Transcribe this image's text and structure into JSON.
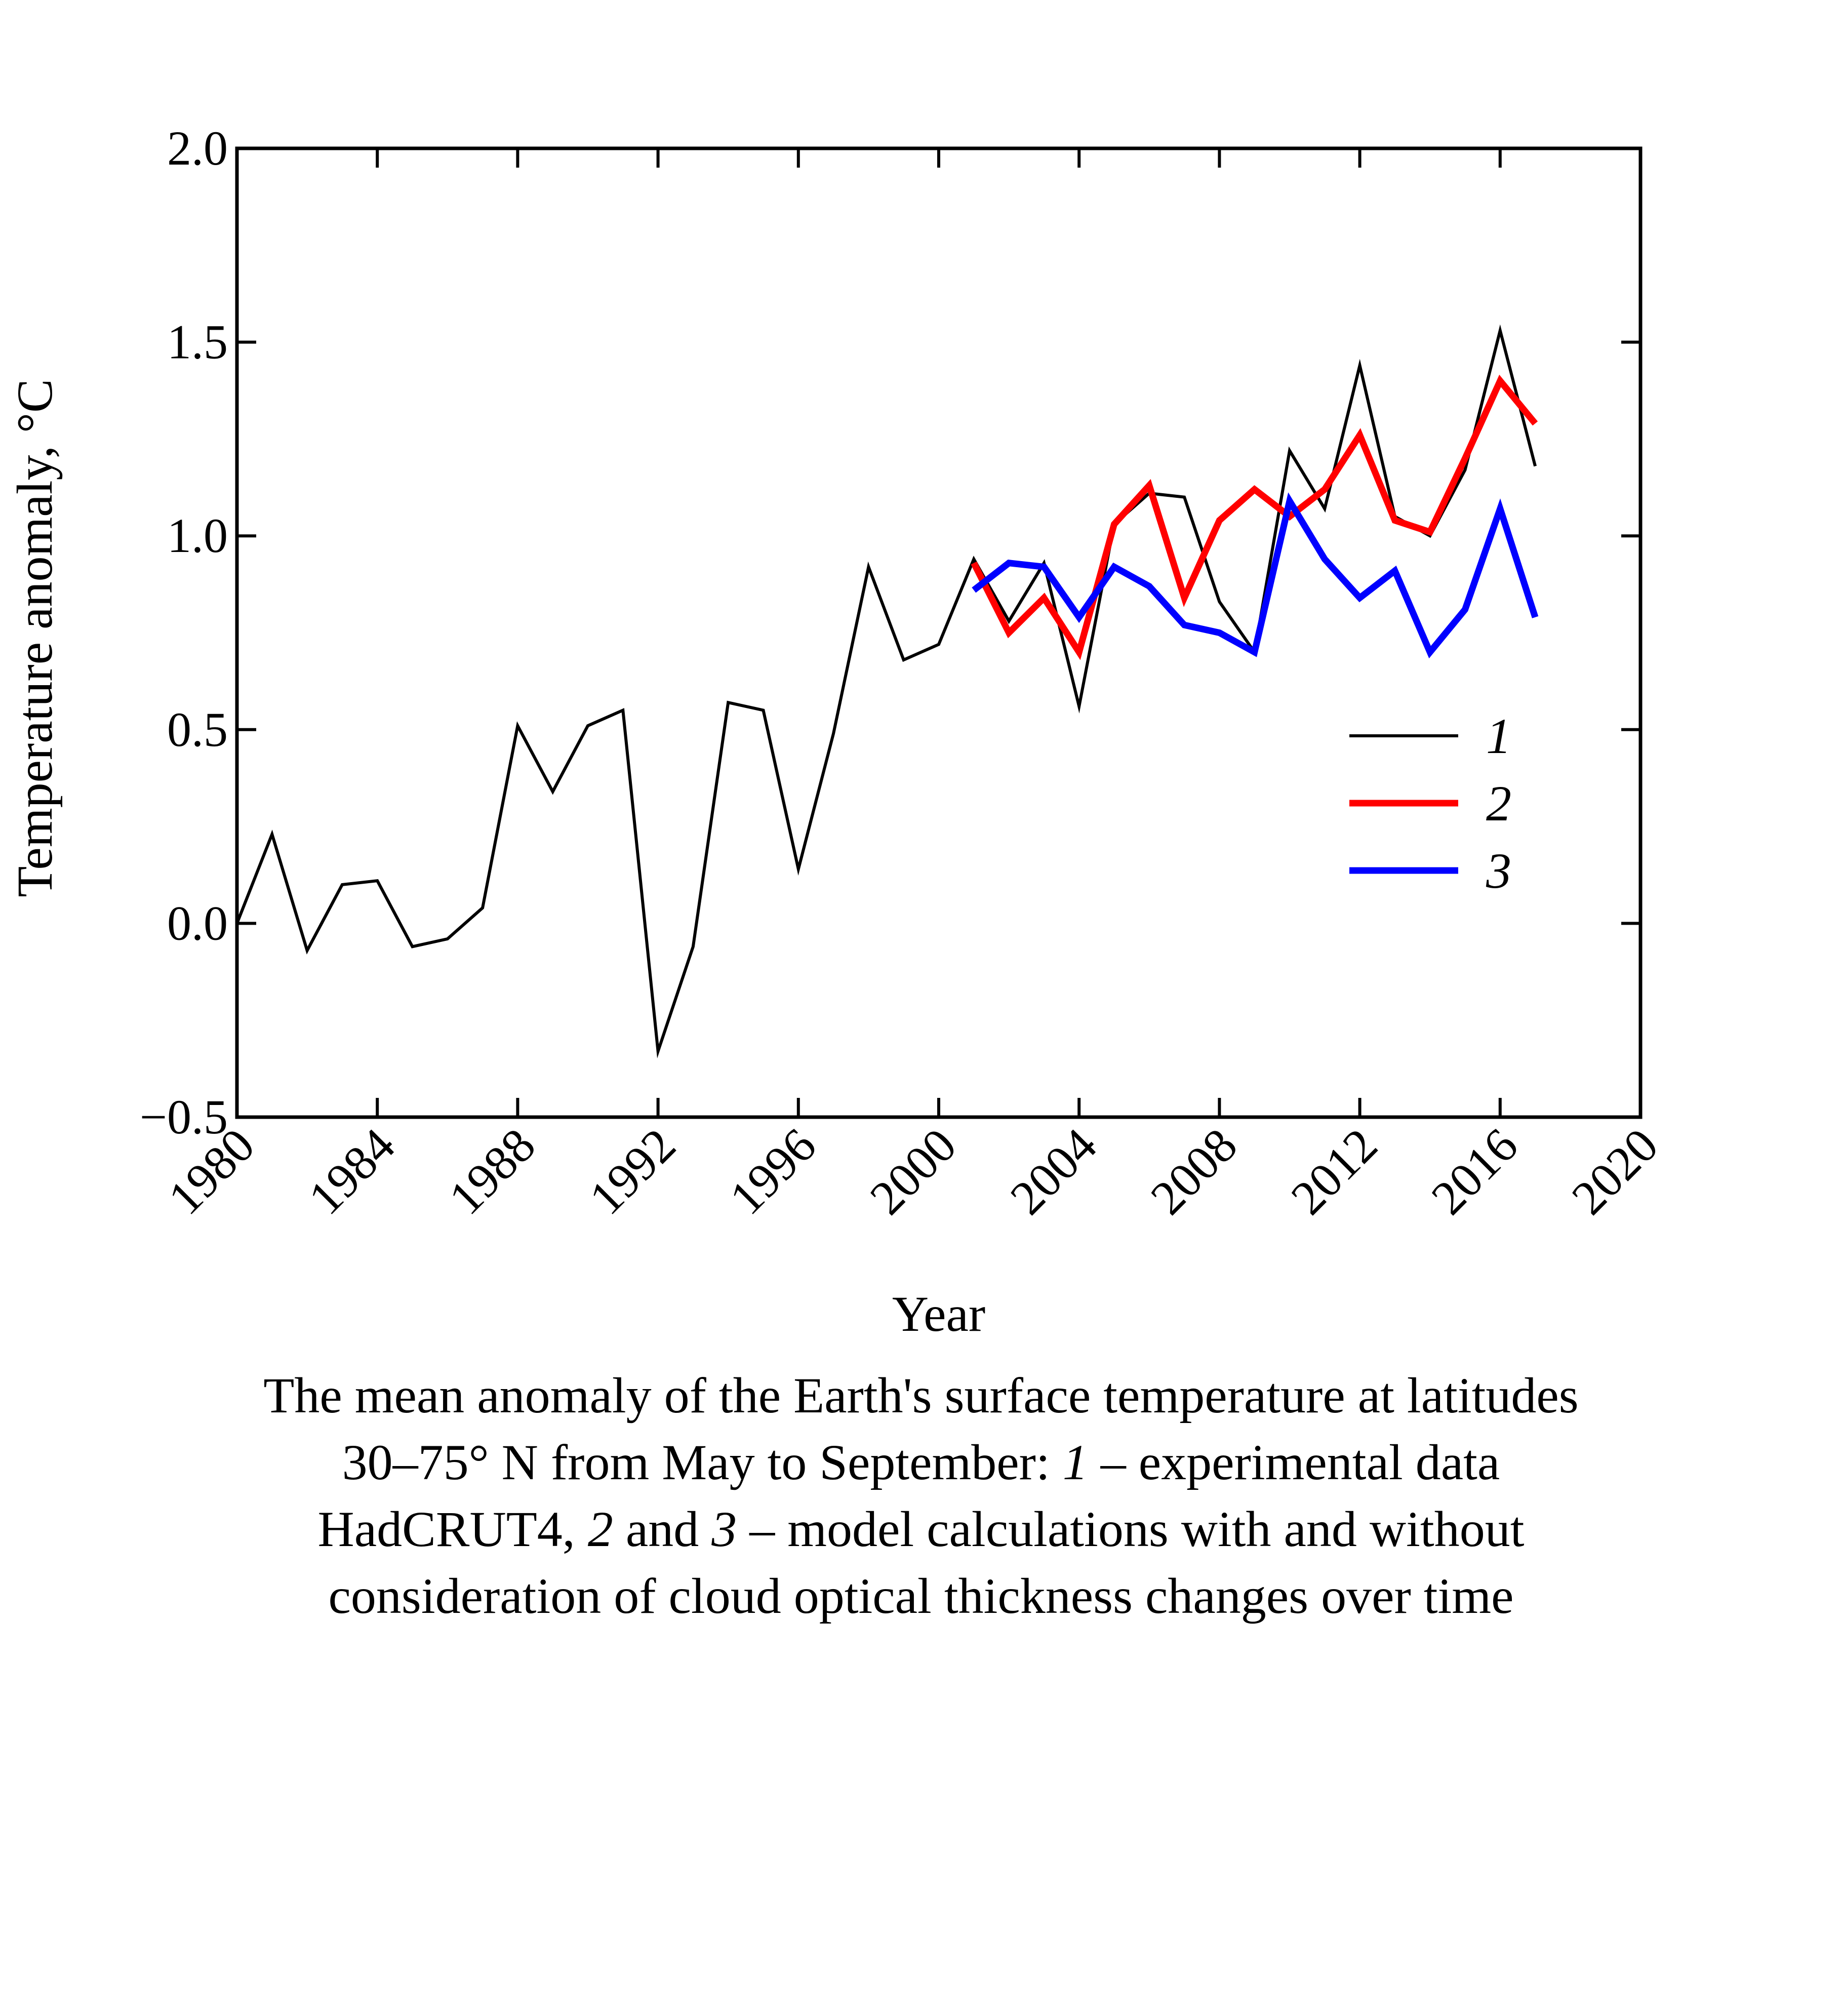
{
  "chart_data": {
    "type": "line",
    "title": "",
    "xlabel": "Year",
    "ylabel": "Temperature anomaly, °C",
    "xlim": [
      1980,
      2020
    ],
    "ylim": [
      -0.5,
      2.0
    ],
    "xticks": [
      1980,
      1984,
      1988,
      1992,
      1996,
      2000,
      2004,
      2008,
      2012,
      2016,
      2020
    ],
    "yticks": [
      -0.5,
      0.0,
      0.5,
      1.0,
      1.5,
      2.0
    ],
    "ytick_labels": [
      "−0.5",
      "0.0",
      "0.5",
      "1.0",
      "1.5",
      "2.0"
    ],
    "grid": false,
    "legend_position": "center-right",
    "series": [
      {
        "name": "1",
        "color": "#000000",
        "x": [
          1980,
          1981,
          1982,
          1983,
          1984,
          1985,
          1986,
          1987,
          1988,
          1989,
          1990,
          1991,
          1992,
          1993,
          1994,
          1995,
          1996,
          1997,
          1998,
          1999,
          2000,
          2001,
          2002,
          2003,
          2004,
          2005,
          2006,
          2007,
          2008,
          2009,
          2010,
          2011,
          2012,
          2013,
          2014,
          2015,
          2016,
          2017
        ],
        "values": [
          0.0,
          0.23,
          -0.07,
          0.1,
          0.11,
          -0.06,
          -0.04,
          0.04,
          0.51,
          0.34,
          0.51,
          0.55,
          -0.33,
          -0.06,
          0.57,
          0.55,
          0.14,
          0.49,
          0.92,
          0.68,
          0.72,
          0.94,
          0.78,
          0.93,
          0.56,
          1.03,
          1.11,
          1.1,
          0.83,
          0.7,
          1.22,
          1.07,
          1.44,
          1.05,
          1.0,
          1.17,
          1.53,
          1.18
        ]
      },
      {
        "name": "2",
        "color": "#ff0000",
        "x": [
          2001,
          2002,
          2003,
          2004,
          2005,
          2006,
          2007,
          2008,
          2009,
          2010,
          2011,
          2012,
          2013,
          2014,
          2015,
          2016,
          2017
        ],
        "values": [
          0.93,
          0.75,
          0.84,
          0.7,
          1.03,
          1.13,
          0.84,
          1.04,
          1.12,
          1.05,
          1.12,
          1.26,
          1.04,
          1.01,
          1.2,
          1.4,
          1.29
        ]
      },
      {
        "name": "3",
        "color": "#0000ff",
        "x": [
          2001,
          2002,
          2003,
          2004,
          2005,
          2006,
          2007,
          2008,
          2009,
          2010,
          2011,
          2012,
          2013,
          2014,
          2015,
          2016,
          2017
        ],
        "values": [
          0.86,
          0.93,
          0.92,
          0.79,
          0.92,
          0.87,
          0.77,
          0.75,
          0.7,
          1.09,
          0.94,
          0.84,
          0.91,
          0.7,
          0.81,
          1.07,
          0.79
        ]
      }
    ]
  },
  "caption": {
    "line1": "The mean anomaly of the Earth's surface temperature at latitudes",
    "line2_a": "30–75° N from May to September: ",
    "line2_b": "1",
    "line2_c": " – experimental data",
    "line3_a": "HadCRUT4, ",
    "line3_b": "2",
    "line3_c": " and ",
    "line3_d": "3",
    "line3_e": " – model calculations with and without",
    "line4": "consideration of cloud optical thickness changes over time"
  }
}
